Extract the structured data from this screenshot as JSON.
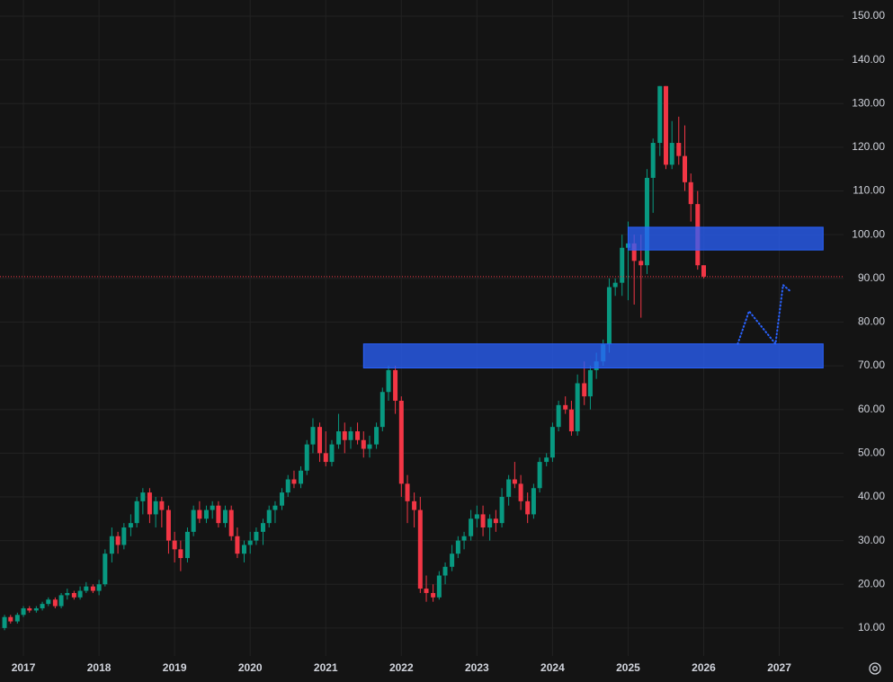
{
  "chart_data": {
    "type": "candlestick",
    "x": [
      2016.75,
      2016.83,
      2016.92,
      2017.0,
      2017.08,
      2017.17,
      2017.25,
      2017.33,
      2017.42,
      2017.5,
      2017.58,
      2017.67,
      2017.75,
      2017.83,
      2017.92,
      2018.0,
      2018.08,
      2018.17,
      2018.25,
      2018.33,
      2018.42,
      2018.5,
      2018.58,
      2018.67,
      2018.75,
      2018.83,
      2018.92,
      2019.0,
      2019.08,
      2019.17,
      2019.25,
      2019.33,
      2019.42,
      2019.5,
      2019.58,
      2019.67,
      2019.75,
      2019.83,
      2019.92,
      2020.0,
      2020.08,
      2020.17,
      2020.25,
      2020.33,
      2020.42,
      2020.5,
      2020.58,
      2020.67,
      2020.75,
      2020.83,
      2020.92,
      2021.0,
      2021.08,
      2021.17,
      2021.25,
      2021.33,
      2021.42,
      2021.5,
      2021.58,
      2021.67,
      2021.75,
      2021.83,
      2021.92,
      2022.0,
      2022.08,
      2022.17,
      2022.25,
      2022.33,
      2022.42,
      2022.5,
      2022.58,
      2022.67,
      2022.75,
      2022.83,
      2022.92,
      2023.0,
      2023.08,
      2023.17,
      2023.25,
      2023.33,
      2023.42,
      2023.5,
      2023.58,
      2023.67,
      2023.75,
      2023.83,
      2023.92,
      2024.0,
      2024.08,
      2024.17,
      2024.25,
      2024.33,
      2024.42,
      2024.5,
      2024.58,
      2024.67,
      2024.75,
      2024.83,
      2024.92,
      2025.0,
      2025.08,
      2025.17,
      2025.25,
      2025.33,
      2025.42,
      2025.5,
      2025.58,
      2025.67,
      2025.75,
      2025.83,
      2025.92,
      2026.0
    ],
    "open": [
      10,
      12.5,
      11.5,
      13,
      14.5,
      14,
      14.5,
      15.5,
      16.5,
      15,
      17.5,
      18,
      17,
      18.5,
      19.5,
      18.5,
      20,
      27,
      31,
      29,
      33,
      34,
      39,
      41,
      36,
      39,
      37,
      30,
      28,
      26,
      32,
      37,
      35,
      37,
      38,
      34,
      37,
      31,
      27,
      29,
      30,
      32,
      34,
      37,
      38,
      41,
      44,
      43,
      46,
      52,
      56,
      50,
      48,
      52,
      55,
      53,
      55,
      53,
      51,
      52,
      56,
      64,
      69,
      62,
      43,
      39,
      37,
      19,
      18,
      17,
      22,
      24,
      27,
      30,
      31,
      35,
      36,
      33,
      35,
      34,
      40,
      44,
      43,
      39,
      36,
      42,
      48,
      49,
      56,
      61,
      60,
      55,
      66,
      63,
      69,
      71,
      75,
      88,
      89,
      97,
      98,
      94,
      93,
      113,
      121,
      134,
      116,
      121,
      118,
      112,
      107,
      93
    ],
    "high": [
      13,
      13,
      13.5,
      15,
      15,
      15,
      16,
      17,
      17,
      18,
      19,
      18.5,
      19.5,
      20.5,
      20,
      21,
      28,
      33,
      32,
      34,
      36,
      40,
      42,
      42,
      40,
      40,
      38,
      32,
      30,
      33,
      38,
      39,
      38,
      39,
      39,
      38,
      38,
      33,
      30,
      32,
      33,
      35,
      38,
      39,
      42,
      45,
      46,
      47,
      53,
      58,
      57,
      55,
      53,
      59,
      57,
      56,
      57,
      55,
      54,
      57,
      65,
      70,
      70,
      63,
      45,
      41,
      40,
      22,
      20,
      23,
      25,
      29,
      31,
      32,
      37,
      38,
      38,
      36,
      37,
      42,
      45,
      48,
      45,
      41,
      43,
      49,
      50,
      57,
      62,
      63,
      62,
      68,
      71,
      70,
      73,
      76,
      90,
      90,
      100,
      103,
      100,
      100,
      115,
      122,
      134,
      134,
      126,
      127,
      125,
      114,
      110,
      93
    ],
    "low": [
      9.5,
      11,
      11,
      12.5,
      13.5,
      13.5,
      14,
      15,
      14.5,
      14.5,
      16.5,
      16.5,
      16.5,
      18,
      18,
      17.5,
      19.5,
      25,
      27,
      28,
      31,
      33,
      36,
      34,
      33,
      33,
      27,
      25,
      23,
      25,
      31,
      34,
      34,
      35,
      33,
      33,
      30,
      26,
      25,
      27,
      29,
      29,
      33,
      34,
      37,
      40,
      42,
      42,
      45,
      50,
      48,
      47,
      47,
      51,
      50,
      51,
      52,
      49,
      49,
      51,
      55,
      62,
      59,
      40,
      34,
      33,
      18,
      16,
      16,
      16.5,
      20,
      23,
      26,
      28,
      30,
      33,
      31,
      30,
      32,
      33,
      38,
      42,
      37,
      34,
      35,
      41,
      47,
      48,
      55,
      59,
      54,
      54,
      61,
      60,
      67,
      70,
      73,
      86,
      86,
      85,
      84,
      81,
      91,
      105,
      118,
      115,
      115,
      116,
      110,
      103,
      92,
      90
    ],
    "close": [
      12.5,
      11.5,
      13,
      14.5,
      14,
      14.5,
      15.5,
      16.5,
      15,
      17.5,
      18,
      17,
      18.5,
      19.5,
      18.5,
      20,
      27,
      31,
      29,
      33,
      34,
      39,
      41,
      36,
      39,
      37,
      30,
      28,
      26,
      32,
      37,
      35,
      37,
      38,
      34,
      37,
      31,
      27,
      29,
      30,
      32,
      34,
      37,
      38,
      41,
      44,
      43,
      46,
      52,
      56,
      50,
      48,
      52,
      55,
      53,
      55,
      53,
      51,
      52,
      56,
      64,
      69,
      62,
      43,
      39,
      37,
      19,
      18,
      17,
      22,
      24,
      27,
      30,
      31,
      35,
      36,
      33,
      35,
      34,
      40,
      44,
      43,
      39,
      36,
      42,
      48,
      49,
      56,
      61,
      60,
      55,
      66,
      63,
      69,
      71,
      75,
      88,
      89,
      97,
      98,
      94,
      93,
      113,
      121,
      134,
      116,
      121,
      118,
      112,
      107,
      93,
      90.4
    ],
    "up_color": "#089981",
    "down_color": "#f23645",
    "last_price": 90.4,
    "last_price_color": "#f23645",
    "zones": [
      {
        "x": [
          2021.5,
          2027.58
        ],
        "y": [
          69.5,
          75
        ]
      },
      {
        "x": [
          2025.0,
          2027.58
        ],
        "y": [
          96.5,
          101.7
        ]
      }
    ],
    "projection": {
      "x": [
        2026.45,
        2026.6,
        2026.95,
        2027.05,
        2027.15
      ],
      "y": [
        75,
        82.5,
        75,
        88.5,
        87
      ]
    },
    "xlim": [
      2016.69,
      2027.85
    ],
    "xticks": [
      2017,
      2018,
      2019,
      2020,
      2021,
      2022,
      2023,
      2024,
      2025,
      2026,
      2027
    ],
    "ylim": [
      3.6,
      153.7
    ],
    "yticks": [
      {
        "value": 10,
        "label": "10.00"
      },
      {
        "value": 20,
        "label": "20.00"
      },
      {
        "value": 30,
        "label": "30.00"
      },
      {
        "value": 40,
        "label": "40.00"
      },
      {
        "value": 50,
        "label": "50.00"
      },
      {
        "value": 60,
        "label": "60.00"
      },
      {
        "value": 70,
        "label": "70.00"
      },
      {
        "value": 80,
        "label": "80.00"
      },
      {
        "value": 90,
        "label": "90.00"
      },
      {
        "value": 100,
        "label": "100.00"
      },
      {
        "value": 110,
        "label": "110.00"
      },
      {
        "value": 120,
        "label": "120.00"
      },
      {
        "value": 130,
        "label": "130.00"
      },
      {
        "value": 140,
        "label": "140.00"
      },
      {
        "value": 150,
        "label": "150.00"
      }
    ],
    "grid": true
  }
}
